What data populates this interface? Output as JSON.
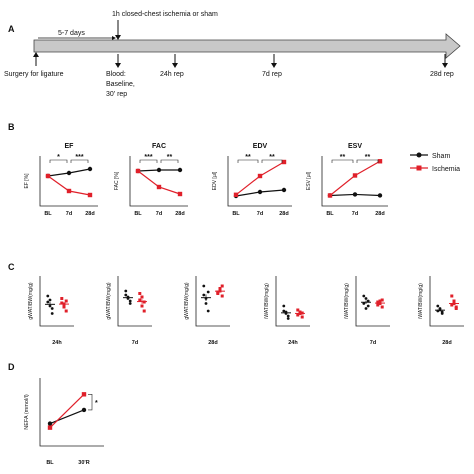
{
  "panels": {
    "a": "A",
    "b": "B",
    "c": "C",
    "d": "D"
  },
  "timeline": {
    "top_label": "1h closed-chest ischemia or sham",
    "mid_label": "5-7 days",
    "events": [
      "Surgery for ligature",
      "Blood:",
      "Baseline,",
      "30' rep",
      "24h rep",
      "7d rep",
      "28d rep"
    ]
  },
  "legend": {
    "sham": "Sham",
    "ischemia": "Ischemia"
  },
  "colors": {
    "sham": "#111111",
    "ischemia": "#e0202a",
    "arrow_fill": "#c8c8c8"
  },
  "chart_data": [
    {
      "type": "line",
      "title": "EF",
      "ylabel": "EF [%]",
      "categories": [
        "BL",
        "7d",
        "28d"
      ],
      "series": [
        {
          "name": "Sham",
          "values": [
            50,
            53,
            57
          ]
        },
        {
          "name": "Ischemia",
          "values": [
            50,
            35,
            31
          ]
        }
      ],
      "annotations": [
        "*",
        "***"
      ]
    },
    {
      "type": "line",
      "title": "FAC",
      "ylabel": "FAC [%]",
      "categories": [
        "BL",
        "7d",
        "28d"
      ],
      "series": [
        {
          "name": "Sham",
          "values": [
            45,
            46,
            46
          ]
        },
        {
          "name": "Ischemia",
          "values": [
            45,
            29,
            22
          ]
        }
      ],
      "annotations": [
        "***",
        "**"
      ]
    },
    {
      "type": "line",
      "title": "EDV",
      "ylabel": "EDV [µl]",
      "categories": [
        "BL",
        "7d",
        "28d"
      ],
      "series": [
        {
          "name": "Sham",
          "values": [
            75,
            85,
            90
          ]
        },
        {
          "name": "Ischemia",
          "values": [
            78,
            125,
            160
          ]
        }
      ],
      "annotations": [
        "**",
        "**"
      ]
    },
    {
      "type": "line",
      "title": "ESV",
      "ylabel": "ESV [µl]",
      "categories": [
        "BL",
        "7d",
        "28d"
      ],
      "series": [
        {
          "name": "Sham",
          "values": [
            40,
            42,
            40
          ]
        },
        {
          "name": "Ischemia",
          "values": [
            40,
            78,
            105
          ]
        }
      ],
      "annotations": [
        "**",
        "**"
      ]
    },
    {
      "type": "scatter",
      "ylabel": "gWAT/BW(mg/g)",
      "categories": [
        "24h"
      ],
      "series": [
        {
          "name": "Sham",
          "values": [
            0.48,
            0.4,
            0.25,
            0.6,
            0.52,
            0.35
          ]
        },
        {
          "name": "Ischemia",
          "values": [
            0.46,
            0.38,
            0.3,
            0.55,
            0.44,
            0.5
          ]
        }
      ]
    },
    {
      "type": "scatter",
      "ylabel": "gWAT/BW(mg/g)",
      "categories": [
        "7d"
      ],
      "series": [
        {
          "name": "Sham",
          "values": [
            0.62,
            0.55,
            0.45,
            0.7,
            0.58,
            0.5
          ]
        },
        {
          "name": "Ischemia",
          "values": [
            0.52,
            0.4,
            0.3,
            0.65,
            0.58,
            0.48
          ]
        }
      ]
    },
    {
      "type": "scatter",
      "ylabel": "gWAT/BW(mg/g)",
      "categories": [
        "28d"
      ],
      "series": [
        {
          "name": "Sham",
          "values": [
            0.62,
            0.45,
            0.3,
            0.8,
            0.55,
            0.68
          ]
        },
        {
          "name": "Ischemia",
          "values": [
            0.68,
            0.75,
            0.6,
            0.65,
            0.7,
            0.8
          ]
        }
      ]
    },
    {
      "type": "scatter",
      "ylabel": "iWAT/BW(mg/g)",
      "categories": [
        "24h"
      ],
      "series": [
        {
          "name": "Sham",
          "values": [
            0.3,
            0.25,
            0.15,
            0.4,
            0.28,
            0.2
          ]
        },
        {
          "name": "Ischemia",
          "values": [
            0.22,
            0.28,
            0.18,
            0.32,
            0.25,
            0.26
          ]
        }
      ]
    },
    {
      "type": "scatter",
      "ylabel": "iWAT/BW(mg/g)",
      "categories": [
        "7d"
      ],
      "series": [
        {
          "name": "Sham",
          "values": [
            0.45,
            0.55,
            0.4,
            0.6,
            0.35,
            0.5
          ]
        },
        {
          "name": "Ischemia",
          "values": [
            0.42,
            0.5,
            0.38,
            0.48,
            0.45,
            0.52
          ]
        }
      ]
    },
    {
      "type": "scatter",
      "ylabel": "iWAT/BW(mg/g)",
      "categories": [
        "28d"
      ],
      "series": [
        {
          "name": "Sham",
          "values": [
            0.3,
            0.35,
            0.25,
            0.4,
            0.32,
            0.28
          ]
        },
        {
          "name": "Ischemia",
          "values": [
            0.42,
            0.5,
            0.38,
            0.6,
            0.45,
            0.35
          ]
        }
      ]
    },
    {
      "type": "line",
      "ylabel": "NEFA (mmol/l)",
      "categories": [
        "BL",
        "30'R"
      ],
      "series": [
        {
          "name": "Sham",
          "values": [
            0.33,
            0.53
          ]
        },
        {
          "name": "Ischemia",
          "values": [
            0.27,
            0.76
          ]
        }
      ],
      "annotations": [
        "*"
      ]
    }
  ]
}
